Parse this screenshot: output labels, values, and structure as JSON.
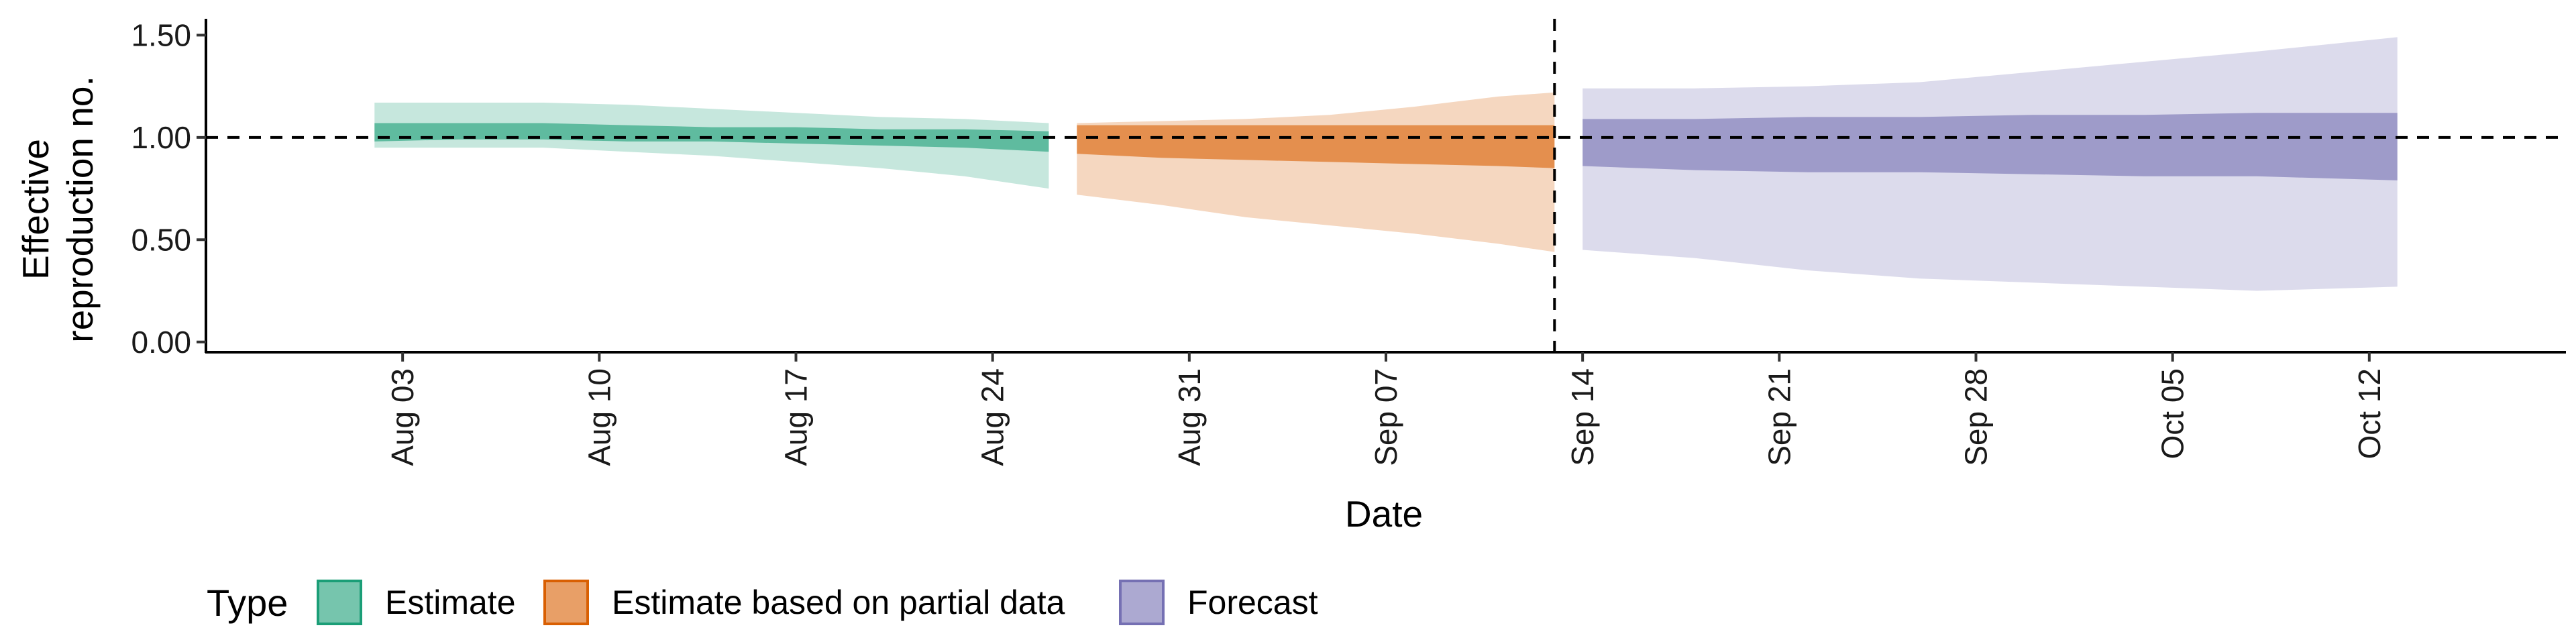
{
  "chart_data": {
    "type": "area",
    "xlabel": "Date",
    "ylabel_lines": [
      "Effective",
      "reproduction no."
    ],
    "ylim": [
      -0.05,
      1.58
    ],
    "yticks": [
      0.0,
      0.5,
      1.0,
      1.5
    ],
    "ytick_labels": [
      "0.00",
      "0.50",
      "1.00",
      "1.50"
    ],
    "xlim": [
      "2020-07-27",
      "2020-10-19"
    ],
    "xticks": [
      "2020-08-03",
      "2020-08-10",
      "2020-08-17",
      "2020-08-24",
      "2020-08-31",
      "2020-09-07",
      "2020-09-14",
      "2020-09-21",
      "2020-09-28",
      "2020-10-05",
      "2020-10-12"
    ],
    "xtick_labels": [
      "Aug 03",
      "Aug 10",
      "Aug 17",
      "Aug 24",
      "Aug 31",
      "Sep 07",
      "Sep 14",
      "Sep 21",
      "Sep 28",
      "Oct 05",
      "Oct 12"
    ],
    "reference_hline": 1.0,
    "reference_vline": "2020-09-13",
    "legend_title": "Type",
    "legend_position": "bottom-left",
    "series": [
      {
        "name": "Estimate",
        "fill_color": "#1b9e77",
        "border_color": "#1b9e77",
        "x": [
          "2020-08-02",
          "2020-08-05",
          "2020-08-08",
          "2020-08-11",
          "2020-08-14",
          "2020-08-17",
          "2020-08-20",
          "2020-08-23",
          "2020-08-26"
        ],
        "outer_upper": [
          1.17,
          1.17,
          1.17,
          1.16,
          1.14,
          1.12,
          1.1,
          1.09,
          1.07
        ],
        "outer_lower": [
          0.95,
          0.95,
          0.95,
          0.93,
          0.91,
          0.88,
          0.85,
          0.81,
          0.75
        ],
        "inner_upper": [
          1.07,
          1.07,
          1.07,
          1.06,
          1.05,
          1.05,
          1.04,
          1.04,
          1.03
        ],
        "inner_lower": [
          0.98,
          0.99,
          0.99,
          0.98,
          0.98,
          0.97,
          0.96,
          0.95,
          0.93
        ]
      },
      {
        "name": "Estimate based on partial data",
        "fill_color": "#d95f02",
        "border_color": "#d95f02",
        "x": [
          "2020-08-27",
          "2020-08-30",
          "2020-09-02",
          "2020-09-05",
          "2020-09-08",
          "2020-09-11",
          "2020-09-13"
        ],
        "outer_upper": [
          1.07,
          1.08,
          1.09,
          1.11,
          1.15,
          1.2,
          1.22
        ],
        "outer_lower": [
          0.72,
          0.67,
          0.61,
          0.57,
          0.53,
          0.48,
          0.44
        ],
        "inner_upper": [
          1.06,
          1.06,
          1.06,
          1.06,
          1.06,
          1.06,
          1.06
        ],
        "inner_lower": [
          0.92,
          0.9,
          0.89,
          0.88,
          0.87,
          0.86,
          0.85
        ]
      },
      {
        "name": "Forecast",
        "fill_color": "#7570b3",
        "border_color": "#7570b3",
        "x": [
          "2020-09-14",
          "2020-09-18",
          "2020-09-22",
          "2020-09-26",
          "2020-09-30",
          "2020-10-04",
          "2020-10-08",
          "2020-10-13"
        ],
        "outer_upper": [
          1.24,
          1.24,
          1.25,
          1.27,
          1.32,
          1.37,
          1.42,
          1.49
        ],
        "outer_lower": [
          0.45,
          0.41,
          0.35,
          0.31,
          0.29,
          0.27,
          0.25,
          0.27
        ],
        "inner_upper": [
          1.09,
          1.09,
          1.1,
          1.1,
          1.11,
          1.11,
          1.12,
          1.12
        ],
        "inner_lower": [
          0.86,
          0.84,
          0.83,
          0.83,
          0.82,
          0.81,
          0.81,
          0.79
        ]
      }
    ]
  }
}
